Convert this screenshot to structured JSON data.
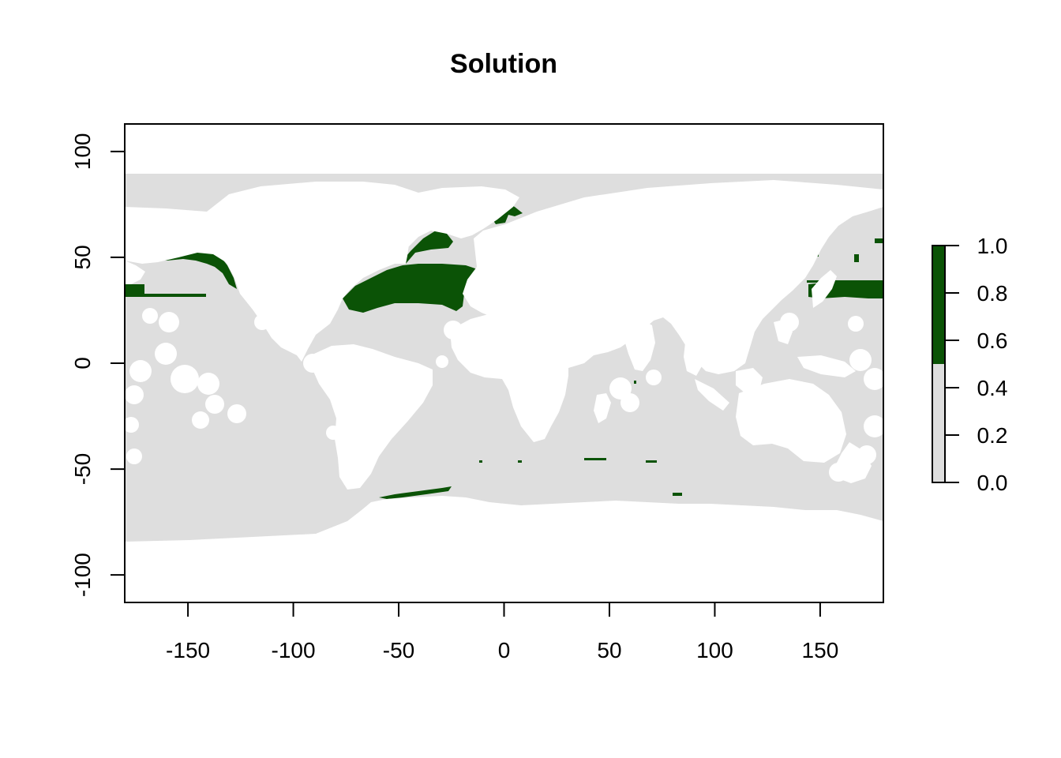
{
  "title": "Solution",
  "map": {
    "x_range": [
      -180,
      180
    ],
    "y_range": [
      -113,
      113
    ],
    "extent_lon": [
      -180,
      180
    ],
    "extent_lat": [
      -84,
      90
    ],
    "x_ticks": [
      -150,
      -100,
      -50,
      0,
      50,
      100,
      150
    ],
    "x_tick_labels": [
      "-150",
      "-100",
      "-50",
      "0",
      "50",
      "100",
      "150"
    ],
    "y_ticks": [
      100,
      50,
      0,
      -50,
      -100
    ],
    "y_tick_labels": [
      "100",
      "50",
      "0",
      "-50",
      "-100"
    ],
    "colors": {
      "ocean_unselected": "#dedede",
      "selected": "#0b5306",
      "land": "#ffffff",
      "frame": "#000000"
    }
  },
  "legend": {
    "range": [
      0.0,
      1.0
    ],
    "break": 0.5,
    "ticks": [
      "1.0",
      "0.8",
      "0.6",
      "0.4",
      "0.2",
      "0.0"
    ],
    "lower_color": "#dedede",
    "upper_color": "#0b5306"
  }
}
